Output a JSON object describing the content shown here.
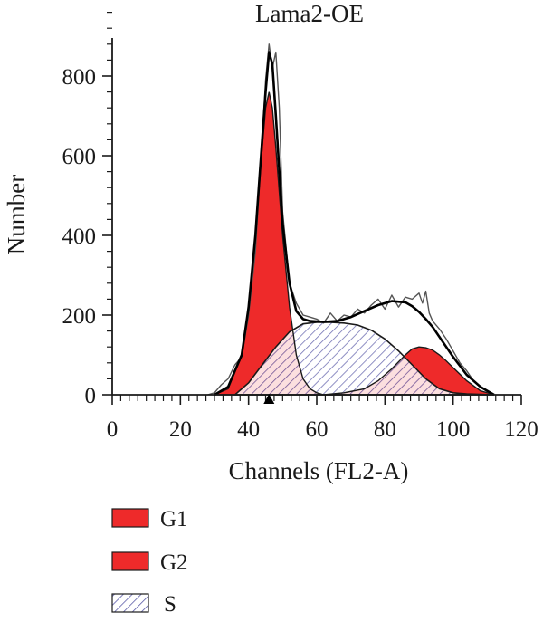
{
  "chart_data": {
    "type": "area",
    "title": "Lama2-OE",
    "xlabel": "Channels (FL2-A)",
    "ylabel": "Number",
    "xlim": [
      0,
      120
    ],
    "ylim": [
      0,
      900
    ],
    "xticks": [
      "0",
      "20",
      "40",
      "60",
      "80",
      "100",
      "120"
    ],
    "yticks": [
      "0",
      "200",
      "400",
      "600",
      "800"
    ],
    "marker_channel": 46,
    "grid": false,
    "legend_position": "bottom-left",
    "legend": [
      {
        "label": "G1",
        "fill": "#ee2a2a",
        "style": "solid"
      },
      {
        "label": "G2",
        "fill": "#ee2a2a",
        "style": "solid"
      },
      {
        "label": "S",
        "fill": "#ffffff",
        "hatch": "#5a5aa8",
        "style": "hatched"
      }
    ],
    "series": [
      {
        "name": "G1",
        "style": "solid",
        "color": "#ee2a2a",
        "x": [
          30,
          34,
          38,
          40,
          42,
          44,
          45,
          46,
          47,
          48,
          50,
          52,
          54,
          56,
          58,
          60,
          62
        ],
        "y": [
          0,
          15,
          100,
          220,
          400,
          620,
          720,
          760,
          720,
          620,
          400,
          220,
          100,
          40,
          15,
          5,
          0
        ]
      },
      {
        "name": "G2",
        "style": "solid",
        "color": "#ee2a2a",
        "x": [
          62,
          68,
          74,
          78,
          82,
          86,
          88,
          90,
          92,
          94,
          96,
          98,
          100,
          104,
          108,
          112
        ],
        "y": [
          0,
          5,
          15,
          35,
          65,
          100,
          115,
          120,
          118,
          112,
          100,
          85,
          68,
          35,
          10,
          0
        ]
      },
      {
        "name": "S",
        "style": "hatched",
        "color": "#5a5aa8",
        "x": [
          36,
          40,
          44,
          48,
          52,
          56,
          60,
          64,
          68,
          72,
          76,
          80,
          84,
          88,
          92,
          96,
          100,
          104,
          108,
          112
        ],
        "y": [
          0,
          30,
          75,
          120,
          158,
          178,
          182,
          182,
          180,
          175,
          162,
          140,
          110,
          75,
          40,
          15,
          5,
          2,
          1,
          0
        ]
      },
      {
        "name": "fit",
        "style": "line",
        "color": "#000000",
        "x": [
          30,
          34,
          38,
          40,
          42,
          44,
          45,
          46,
          47,
          48,
          50,
          52,
          54,
          56,
          58,
          62,
          66,
          70,
          74,
          78,
          82,
          86,
          88,
          90,
          92,
          94,
          96,
          98,
          100,
          104,
          108,
          112
        ],
        "y": [
          0,
          20,
          100,
          220,
          400,
          640,
          760,
          860,
          830,
          700,
          430,
          280,
          210,
          190,
          185,
          183,
          185,
          195,
          210,
          225,
          235,
          232,
          222,
          208,
          190,
          170,
          145,
          120,
          95,
          50,
          20,
          0
        ]
      },
      {
        "name": "data",
        "style": "line",
        "color": "#555555",
        "x": [
          28,
          30,
          32,
          34,
          36,
          38,
          40,
          42,
          44,
          45,
          46,
          47,
          48,
          49,
          50,
          52,
          54,
          56,
          58,
          60,
          62,
          64,
          66,
          68,
          70,
          72,
          74,
          76,
          78,
          80,
          82,
          84,
          86,
          88,
          90,
          91,
          92,
          93,
          94,
          96,
          98,
          100,
          102,
          104,
          106,
          108,
          110,
          112
        ],
        "y": [
          0,
          5,
          25,
          40,
          75,
          95,
          200,
          360,
          640,
          790,
          880,
          820,
          860,
          720,
          460,
          280,
          230,
          200,
          195,
          190,
          180,
          205,
          185,
          200,
          195,
          215,
          205,
          225,
          240,
          215,
          250,
          220,
          245,
          240,
          255,
          230,
          260,
          205,
          185,
          165,
          140,
          110,
          80,
          60,
          35,
          20,
          8,
          0
        ]
      }
    ]
  }
}
